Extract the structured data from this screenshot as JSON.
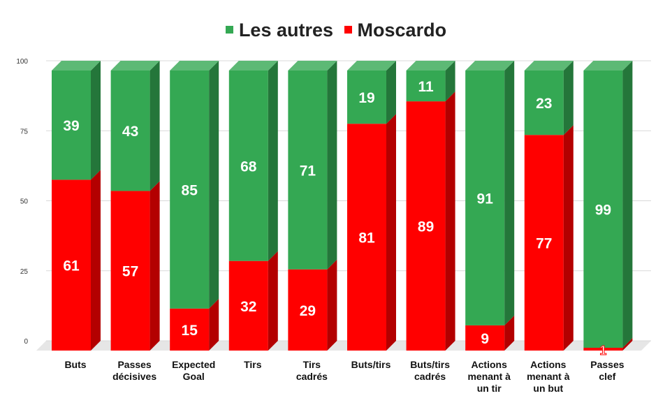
{
  "chart_data": {
    "type": "bar",
    "stacked": true,
    "percent": true,
    "categories": [
      "Buts",
      "Passes décisives",
      "Expected Goal",
      "Tirs",
      "Tirs cadrés",
      "Buts/tirs",
      "Buts/tirs cadrés",
      "Actions menant à un tir",
      "Actions menant à un but",
      "Passes clef"
    ],
    "category_lines": [
      [
        "Buts"
      ],
      [
        "Passes",
        "décisives"
      ],
      [
        "Expected",
        "Goal"
      ],
      [
        "Tirs"
      ],
      [
        "Tirs",
        "cadrés"
      ],
      [
        "Buts/tirs"
      ],
      [
        "Buts/tirs",
        "cadrés"
      ],
      [
        "Actions",
        "menant à",
        "un tir"
      ],
      [
        "Actions",
        "menant à",
        "un but"
      ],
      [
        "Passes",
        "clef"
      ]
    ],
    "series": [
      {
        "name": "Moscardo",
        "color": "#ff0000",
        "values": [
          61,
          57,
          15,
          32,
          29,
          81,
          89,
          9,
          77,
          1
        ]
      },
      {
        "name": "Les autres",
        "color": "#34a853",
        "values": [
          39,
          43,
          85,
          68,
          71,
          19,
          11,
          91,
          23,
          99
        ]
      }
    ],
    "legend": [
      "Les autres",
      "Moscardo"
    ],
    "legend_position": "top",
    "yticks": [
      "0",
      "25",
      "50",
      "75",
      "100"
    ],
    "ylim": [
      0,
      100
    ],
    "grid": true,
    "style": "3d"
  }
}
